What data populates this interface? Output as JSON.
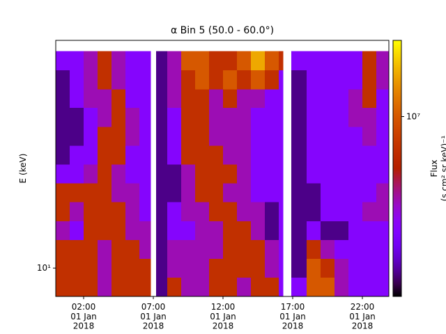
{
  "chart_data": {
    "type": "heatmap",
    "title": "α Bin 5 (50.0 - 60.0°)",
    "ylabel": "E (keV)",
    "xbins": [
      0,
      1,
      2,
      3,
      4,
      5,
      6,
      6.8,
      7.2,
      8,
      9,
      10,
      11,
      12,
      13,
      14,
      15,
      16,
      16.3,
      16.9,
      18,
      19,
      20,
      21,
      22,
      23,
      23.9
    ],
    "ybins": [
      8,
      9.28,
      10.77,
      12.49,
      14.49,
      16.81,
      19.5,
      22.6,
      26.2,
      30.4,
      35.3,
      40.9,
      47.5,
      55.1
    ],
    "z": [
      [
        7000000.0,
        7000000.0,
        7000000.0,
        4000000.0,
        7000000.0,
        7000000.0,
        7000000.0,
        null,
        1800000.0,
        7000000.0,
        4000000.0,
        4000000.0,
        7000000.0,
        7000000.0,
        4000000.0,
        7000000.0,
        7000000.0,
        3000000.0,
        null,
        3000000.0,
        10000000.0,
        10000000.0,
        4000000.0,
        3000000.0,
        3000000.0,
        3000000.0
      ],
      [
        7000000.0,
        7000000.0,
        7000000.0,
        4000000.0,
        7000000.0,
        7000000.0,
        7000000.0,
        null,
        1800000.0,
        4000000.0,
        4000000.0,
        4000000.0,
        7000000.0,
        7000000.0,
        7000000.0,
        7000000.0,
        4000000.0,
        3000000.0,
        null,
        1800000.0,
        10000000.0,
        7000000.0,
        4000000.0,
        3000000.0,
        3000000.0,
        3000000.0
      ],
      [
        7000000.0,
        7000000.0,
        7000000.0,
        4000000.0,
        7000000.0,
        7000000.0,
        4000000.0,
        null,
        1800000.0,
        4000000.0,
        4000000.0,
        4000000.0,
        4000000.0,
        7000000.0,
        7000000.0,
        7000000.0,
        4000000.0,
        3000000.0,
        null,
        1800000.0,
        7000000.0,
        4000000.0,
        3000000.0,
        3000000.0,
        3000000.0,
        3000000.0
      ],
      [
        4000000.0,
        3000000.0,
        7000000.0,
        7000000.0,
        7000000.0,
        4000000.0,
        4000000.0,
        null,
        1800000.0,
        3000000.0,
        3000000.0,
        4000000.0,
        4000000.0,
        7000000.0,
        7000000.0,
        4000000.0,
        1800000.0,
        3000000.0,
        null,
        1800000.0,
        3000000.0,
        1800000.0,
        1800000.0,
        3000000.0,
        3000000.0,
        3000000.0
      ],
      [
        7000000.0,
        4000000.0,
        7000000.0,
        7000000.0,
        7000000.0,
        4000000.0,
        3000000.0,
        null,
        1800000.0,
        3000000.0,
        4000000.0,
        4000000.0,
        7000000.0,
        7000000.0,
        4000000.0,
        4000000.0,
        1800000.0,
        3000000.0,
        null,
        1800000.0,
        1800000.0,
        3000000.0,
        3000000.0,
        3000000.0,
        4000000.0,
        4000000.0
      ],
      [
        7000000.0,
        7000000.0,
        7000000.0,
        7000000.0,
        4000000.0,
        4000000.0,
        3000000.0,
        null,
        1800000.0,
        1800000.0,
        4000000.0,
        7000000.0,
        7000000.0,
        4000000.0,
        4000000.0,
        3000000.0,
        3000000.0,
        3000000.0,
        null,
        1800000.0,
        1800000.0,
        3000000.0,
        3000000.0,
        3000000.0,
        3000000.0,
        4000000.0
      ],
      [
        3000000.0,
        3000000.0,
        4000000.0,
        7000000.0,
        4000000.0,
        3000000.0,
        3000000.0,
        null,
        1800000.0,
        1800000.0,
        4000000.0,
        7000000.0,
        7000000.0,
        7000000.0,
        4000000.0,
        3000000.0,
        3000000.0,
        3000000.0,
        null,
        1800000.0,
        3000000.0,
        3000000.0,
        3000000.0,
        3000000.0,
        3000000.0,
        3000000.0
      ],
      [
        1800000.0,
        3000000.0,
        3000000.0,
        7000000.0,
        7000000.0,
        3000000.0,
        3000000.0,
        null,
        1800000.0,
        3000000.0,
        7000000.0,
        7000000.0,
        7000000.0,
        4000000.0,
        4000000.0,
        3000000.0,
        3000000.0,
        3000000.0,
        null,
        1800000.0,
        3000000.0,
        3000000.0,
        3000000.0,
        3000000.0,
        3000000.0,
        3000000.0
      ],
      [
        1800000.0,
        1800000.0,
        3000000.0,
        7000000.0,
        7000000.0,
        4000000.0,
        3000000.0,
        null,
        1800000.0,
        3000000.0,
        7000000.0,
        7000000.0,
        4000000.0,
        4000000.0,
        4000000.0,
        3000000.0,
        3000000.0,
        3000000.0,
        null,
        1800000.0,
        3000000.0,
        3000000.0,
        3000000.0,
        3000000.0,
        4000000.0,
        3000000.0
      ],
      [
        1800000.0,
        1800000.0,
        3000000.0,
        4000000.0,
        7000000.0,
        4000000.0,
        3000000.0,
        null,
        1800000.0,
        3000000.0,
        7000000.0,
        7000000.0,
        4000000.0,
        4000000.0,
        4000000.0,
        3000000.0,
        3000000.0,
        3000000.0,
        null,
        1800000.0,
        3000000.0,
        3000000.0,
        3000000.0,
        4000000.0,
        4000000.0,
        3000000.0
      ],
      [
        1800000.0,
        3000000.0,
        4000000.0,
        4000000.0,
        7000000.0,
        3000000.0,
        3000000.0,
        null,
        1800000.0,
        4000000.0,
        7000000.0,
        7000000.0,
        4000000.0,
        7000000.0,
        4000000.0,
        4000000.0,
        3000000.0,
        3000000.0,
        null,
        1800000.0,
        3000000.0,
        3000000.0,
        3000000.0,
        4000000.0,
        7000000.0,
        3000000.0
      ],
      [
        1800000.0,
        3000000.0,
        4000000.0,
        7000000.0,
        4000000.0,
        3000000.0,
        3000000.0,
        null,
        1800000.0,
        4000000.0,
        7000000.0,
        10000000.0,
        7000000.0,
        10000000.0,
        7000000.0,
        10000000.0,
        7000000.0,
        3000000.0,
        null,
        1800000.0,
        3000000.0,
        3000000.0,
        3000000.0,
        3000000.0,
        7000000.0,
        4000000.0
      ],
      [
        3000000.0,
        3000000.0,
        4000000.0,
        7000000.0,
        4000000.0,
        3000000.0,
        3000000.0,
        null,
        1800000.0,
        4000000.0,
        10000000.0,
        10000000.0,
        7000000.0,
        7000000.0,
        10000000.0,
        16000000.0,
        10000000.0,
        7000000.0,
        null,
        3000000.0,
        3000000.0,
        3000000.0,
        3000000.0,
        3000000.0,
        7000000.0,
        4000000.0
      ]
    ],
    "xlim": [
      0,
      23.9
    ],
    "ylim": [
      8,
      60
    ],
    "log_y": true,
    "xticks": [
      {
        "value": 2,
        "label": "02:00\n01 Jan\n2018"
      },
      {
        "value": 7,
        "label": "07:00\n01 Jan\n2018"
      },
      {
        "value": 12,
        "label": "12:00\n01 Jan\n2018"
      },
      {
        "value": 17,
        "label": "17:00\n01 Jan\n2018"
      },
      {
        "value": 22,
        "label": "22:00\n01 Jan\n2018"
      }
    ],
    "yticks": [
      {
        "value": 10,
        "label": "10¹"
      }
    ],
    "colorbar": {
      "label": "Flux",
      "units": "(s cm² sr keV)⁻¹",
      "cmap": "gnuplot",
      "lim": [
        1400000,
        23000000
      ],
      "ticks": [
        {
          "value": 10000000,
          "label": "10⁷"
        }
      ]
    }
  }
}
